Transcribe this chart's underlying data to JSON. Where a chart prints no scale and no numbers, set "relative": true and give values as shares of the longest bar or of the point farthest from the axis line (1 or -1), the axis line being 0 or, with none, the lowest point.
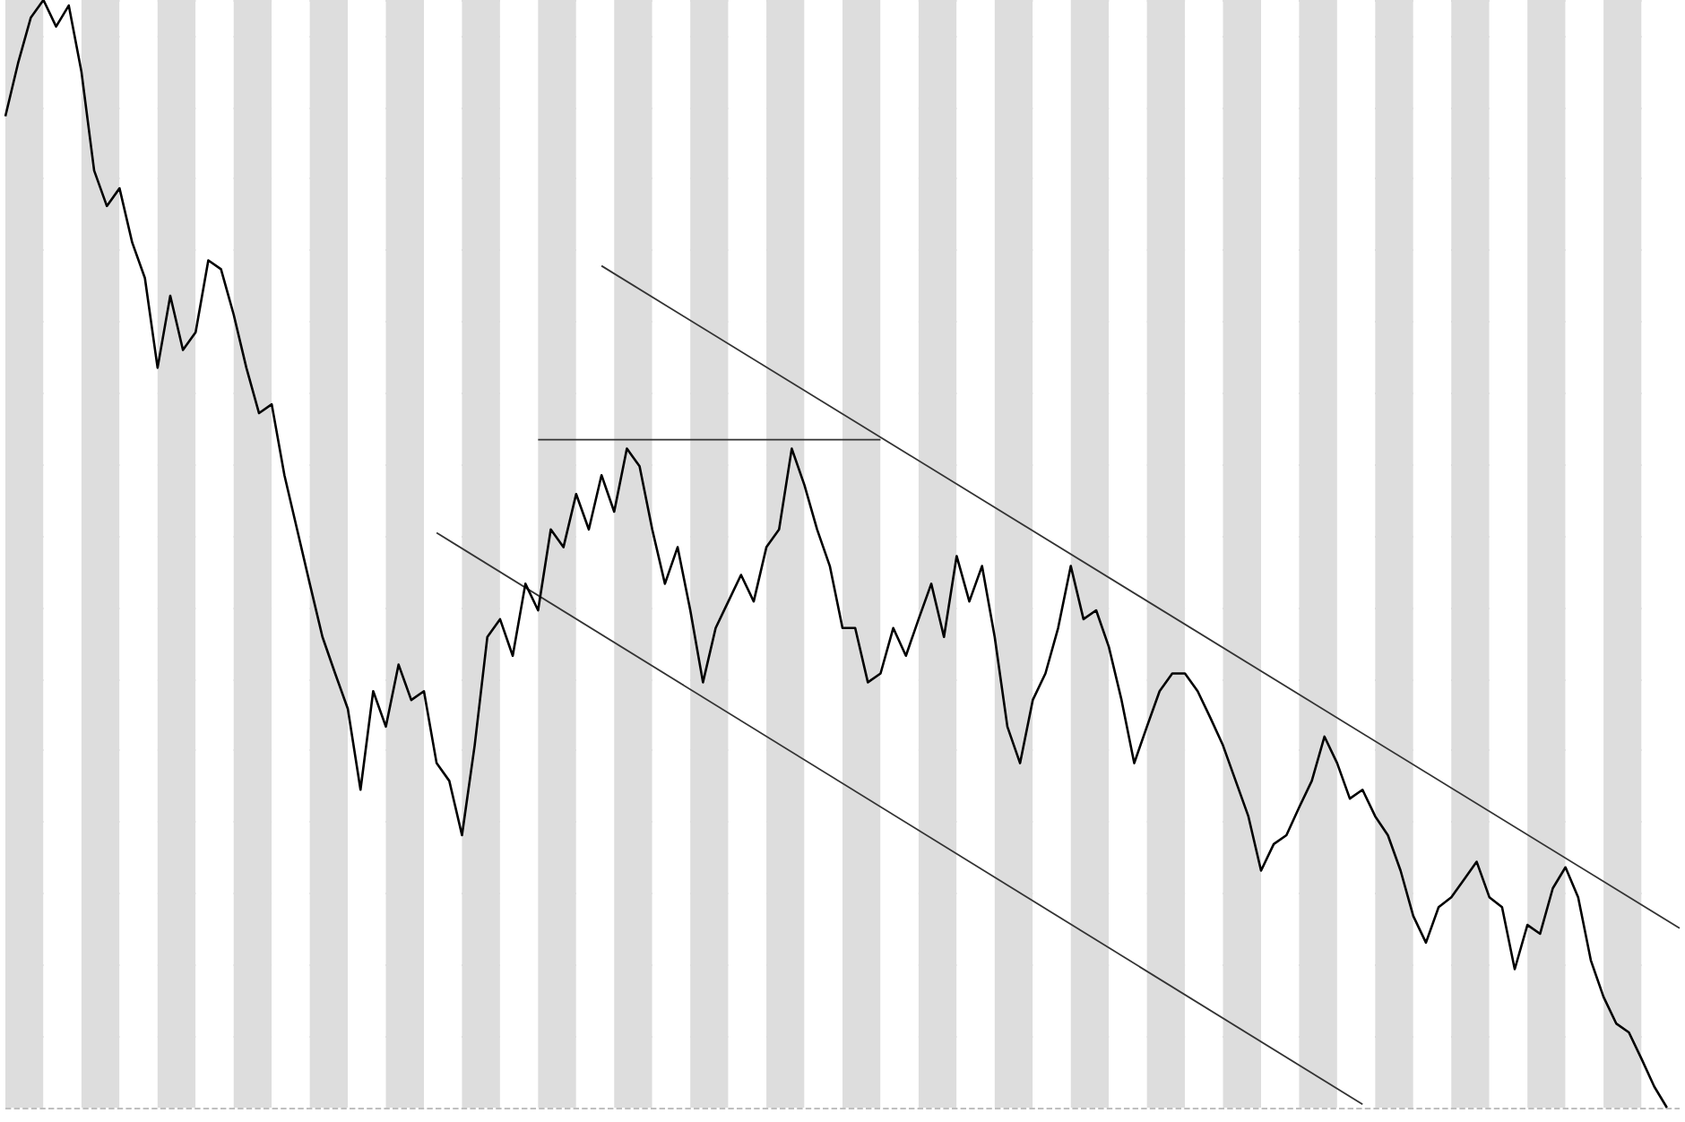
{
  "chart_data": {
    "type": "line",
    "relative": true,
    "grid": true,
    "marker": "none",
    "categories": [
      null,
      null,
      null,
      null,
      null,
      null,
      null,
      null,
      null,
      null,
      null,
      null,
      null,
      null,
      null,
      null,
      null,
      null,
      null,
      null,
      null,
      null,
      null,
      null,
      null,
      null,
      null,
      null,
      null,
      null,
      null,
      null,
      null,
      null,
      null,
      null,
      null,
      null,
      null,
      null,
      null,
      null,
      null,
      null,
      null,
      null,
      null,
      null,
      null,
      null,
      null,
      null,
      null,
      null,
      null,
      null,
      null,
      null,
      null,
      null,
      null,
      null,
      null,
      null,
      null,
      null,
      null,
      null,
      null,
      null,
      null,
      null,
      null,
      null,
      null,
      null,
      null,
      null,
      null,
      null,
      null,
      null,
      null,
      null,
      null,
      null,
      null,
      null,
      null,
      null,
      null,
      null,
      null,
      null,
      null,
      null,
      null,
      null,
      null,
      null,
      null,
      null,
      null,
      null,
      null,
      null,
      null,
      null,
      null,
      null,
      null,
      null,
      null,
      null,
      null,
      null,
      null,
      null,
      null,
      null,
      null,
      null,
      null,
      null,
      null,
      null,
      null,
      null,
      null,
      null,
      null,
      null,
      null
    ],
    "series": [
      {
        "color": "#000000",
        "values": [
          0.895,
          0.943,
          0.984,
          1,
          0.976,
          0.995,
          0.935,
          0.846,
          0.814,
          0.83,
          0.781,
          0.749,
          0.668,
          0.733,
          0.684,
          0.7,
          0.765,
          0.757,
          0.716,
          0.668,
          0.627,
          0.635,
          0.571,
          0.522,
          0.473,
          0.425,
          0.392,
          0.36,
          0.287,
          0.376,
          0.344,
          0.4,
          0.368,
          0.376,
          0.311,
          0.295,
          0.246,
          0.327,
          0.425,
          0.441,
          0.408,
          0.473,
          0.449,
          0.522,
          0.506,
          0.554,
          0.522,
          0.571,
          0.538,
          0.595,
          0.579,
          0.522,
          0.473,
          0.506,
          0.449,
          0.384,
          0.433,
          0.457,
          0.481,
          0.457,
          0.506,
          0.522,
          0.595,
          0.562,
          0.522,
          0.489,
          0.433,
          0.433,
          0.384,
          0.392,
          0.433,
          0.408,
          0.441,
          0.473,
          0.425,
          0.498,
          0.457,
          0.489,
          0.425,
          0.344,
          0.311,
          0.368,
          0.392,
          0.433,
          0.489,
          0.441,
          0.449,
          0.416,
          0.368,
          0.311,
          0.344,
          0.376,
          0.392,
          0.392,
          0.376,
          0.352,
          0.327,
          0.295,
          0.263,
          0.214,
          0.238,
          0.246,
          0.271,
          0.295,
          0.335,
          0.311,
          0.279,
          0.287,
          0.263,
          0.246,
          0.214,
          0.173,
          0.149,
          0.181,
          0.19,
          0.206,
          0.222,
          0.19,
          0.181,
          0.125,
          0.165,
          0.157,
          0.198,
          0.217,
          0.19,
          0.133,
          0.1,
          0.076,
          0.068,
          0.044,
          0.019,
          0,
          null
        ]
      },
      {
        "type": "line",
        "color": "#333333",
        "values": [
          null,
          null,
          null,
          null,
          null,
          null,
          null,
          null,
          null,
          null,
          null,
          null,
          null,
          null,
          null,
          null,
          null,
          null,
          null,
          null,
          null,
          null,
          null,
          null,
          null,
          null,
          null,
          null,
          null,
          null,
          null,
          null,
          null,
          null,
          null,
          null,
          null,
          null,
          null,
          null,
          null,
          null,
          null,
          null,
          null,
          null,
          null,
          0.76,
          null,
          null,
          null,
          null,
          null,
          null,
          null,
          null,
          null,
          null,
          null,
          null,
          null,
          null,
          null,
          null,
          null,
          null,
          null,
          null,
          null,
          null,
          null,
          null,
          null,
          null,
          null,
          null,
          null,
          null,
          null,
          null,
          null,
          null,
          null,
          null,
          null,
          null,
          null,
          null,
          null,
          null,
          null,
          null,
          null,
          null,
          null,
          null,
          null,
          null,
          null,
          null,
          null,
          null,
          null,
          null,
          null,
          null,
          null,
          null,
          null,
          null,
          null,
          null,
          null,
          null,
          null,
          null,
          null,
          null,
          null,
          null,
          null,
          null,
          null,
          null,
          null,
          null,
          null,
          null,
          null,
          null,
          null,
          null,
          0.162
        ]
      },
      {
        "type": "line",
        "color": "#333333",
        "values": [
          null,
          null,
          null,
          null,
          null,
          null,
          null,
          null,
          null,
          null,
          null,
          null,
          null,
          null,
          null,
          null,
          null,
          null,
          null,
          null,
          null,
          null,
          null,
          null,
          null,
          null,
          null,
          null,
          null,
          null,
          null,
          null,
          null,
          null,
          0.519,
          null,
          null,
          null,
          null,
          null,
          null,
          null,
          null,
          null,
          null,
          null,
          null,
          null,
          null,
          null,
          null,
          null,
          null,
          null,
          null,
          null,
          null,
          null,
          null,
          null,
          null,
          null,
          null,
          null,
          null,
          null,
          null,
          null,
          null,
          null,
          null,
          null,
          null,
          null,
          null,
          null,
          null,
          null,
          null,
          null,
          null,
          null,
          null,
          null,
          null,
          null,
          null,
          null,
          null,
          null,
          null,
          null,
          null,
          null,
          null,
          null,
          null,
          null,
          null,
          null,
          null,
          null,
          null,
          null,
          null,
          null,
          null,
          0.003,
          null,
          null,
          null,
          null,
          null,
          null,
          null,
          null,
          null,
          null,
          null,
          null,
          null,
          null,
          null,
          null,
          null,
          null,
          null,
          null,
          null,
          null,
          null,
          null,
          null
        ]
      },
      {
        "type": "line",
        "color": "#333333",
        "values": [
          null,
          null,
          null,
          null,
          null,
          null,
          null,
          null,
          null,
          null,
          null,
          null,
          null,
          null,
          null,
          null,
          null,
          null,
          null,
          null,
          null,
          null,
          null,
          null,
          null,
          null,
          null,
          null,
          null,
          null,
          null,
          null,
          null,
          null,
          null,
          null,
          null,
          null,
          null,
          null,
          null,
          null,
          0.603,
          null,
          null,
          null,
          null,
          null,
          null,
          null,
          null,
          null,
          null,
          null,
          null,
          null,
          null,
          null,
          null,
          null,
          null,
          null,
          null,
          null,
          null,
          null,
          null,
          null,
          null,
          0.603,
          null,
          null,
          null,
          null,
          null,
          null,
          null,
          null,
          null,
          null,
          null,
          null,
          null,
          null,
          null,
          null,
          null,
          null,
          null,
          null,
          null,
          null,
          null,
          null,
          null,
          null,
          null,
          null,
          null,
          null,
          null,
          null,
          null,
          null,
          null,
          null,
          null,
          null,
          null,
          null,
          null,
          null,
          null,
          null,
          null,
          null,
          null,
          null,
          null,
          null,
          null,
          null,
          null,
          null,
          null,
          null,
          null,
          null,
          null,
          null,
          null,
          null,
          null
        ]
      }
    ]
  }
}
